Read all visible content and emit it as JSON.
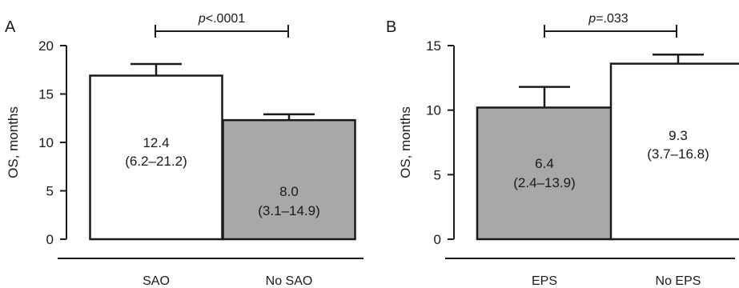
{
  "chart_data": [
    {
      "type": "bar",
      "panel_label": "A",
      "ylabel": "OS, months",
      "ylim": [
        0,
        20
      ],
      "yticks": [
        0,
        5,
        10,
        15,
        20
      ],
      "categories": [
        "SAO",
        "No SAO"
      ],
      "values": [
        16.9,
        12.3
      ],
      "error_upper": [
        18.1,
        12.9
      ],
      "bar_colors": [
        "#ffffff",
        "#a8a8a8"
      ],
      "bar_labels": [
        {
          "median": "12.4",
          "range": "(6.2–21.2)"
        },
        {
          "median": "8.0",
          "range": "(3.1–14.9)"
        }
      ],
      "significance": {
        "p_symbol": "p",
        "p_rest": "<.0001"
      },
      "grid": false
    },
    {
      "type": "bar",
      "panel_label": "B",
      "ylabel": "OS, months",
      "ylim": [
        0,
        15
      ],
      "yticks": [
        0,
        5,
        10,
        15
      ],
      "categories": [
        "EPS",
        "No EPS"
      ],
      "values": [
        10.2,
        13.6
      ],
      "error_upper": [
        11.8,
        14.3
      ],
      "bar_colors": [
        "#a8a8a8",
        "#ffffff"
      ],
      "bar_labels": [
        {
          "median": "6.4",
          "range": "(2.4–13.9)"
        },
        {
          "median": "9.3",
          "range": "(3.7–16.8)"
        }
      ],
      "significance": {
        "p_symbol": "p",
        "p_rest": "=.033"
      },
      "grid": false
    }
  ]
}
